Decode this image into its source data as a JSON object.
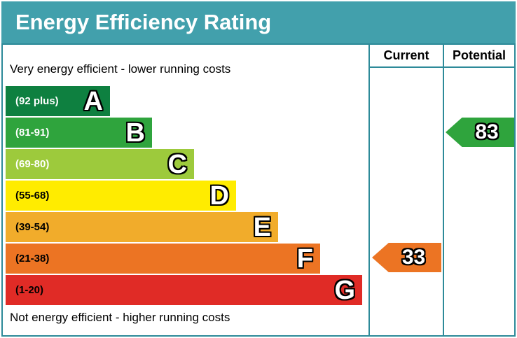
{
  "window": {
    "title": "Energy Efficiency Rating"
  },
  "table": {
    "current_header": "Current",
    "potential_header": "Potential"
  },
  "notes": {
    "top": "Very energy efficient - lower running costs",
    "bottom": "Not energy efficient - higher running costs"
  },
  "bands": [
    {
      "letter": "A",
      "range": "(92 plus)",
      "color": "#0e8040",
      "text_color": "#ffffff"
    },
    {
      "letter": "B",
      "range": "(81-91)",
      "color": "#2fa43d",
      "text_color": "#ffffff"
    },
    {
      "letter": "C",
      "range": "(69-80)",
      "color": "#9dca3c",
      "text_color": "#ffffff"
    },
    {
      "letter": "D",
      "range": "(55-68)",
      "color": "#ffec00",
      "text_color": "#000000"
    },
    {
      "letter": "E",
      "range": "(39-54)",
      "color": "#f1ac2b",
      "text_color": "#000000"
    },
    {
      "letter": "F",
      "range": "(21-38)",
      "color": "#ec7423",
      "text_color": "#000000"
    },
    {
      "letter": "G",
      "range": "(1-20)",
      "color": "#e02b26",
      "text_color": "#000000"
    }
  ],
  "markers": {
    "current": {
      "value": "33",
      "color": "#ec7423"
    },
    "potential": {
      "value": "83",
      "color": "#2fa43d"
    }
  },
  "theme": {
    "titlebar": "#42a0ac",
    "border": "#2d8a99",
    "header_text": "#000000"
  },
  "chart_data": {
    "type": "bar",
    "title": "Energy Efficiency Rating",
    "categories": [
      "A",
      "B",
      "C",
      "D",
      "E",
      "F",
      "G"
    ],
    "band_ranges": [
      "92 plus",
      "81-91",
      "69-80",
      "55-68",
      "39-54",
      "21-38",
      "1-20"
    ],
    "band_colors": [
      "#0e8040",
      "#2fa43d",
      "#9dca3c",
      "#ffec00",
      "#f1ac2b",
      "#ec7423",
      "#e02b26"
    ],
    "bar_relative_widths": [
      149,
      209,
      269,
      329,
      389,
      449,
      509
    ],
    "current_rating": 33,
    "current_band": "F",
    "potential_rating": 83,
    "potential_band": "B",
    "column_headers": [
      "Current",
      "Potential"
    ],
    "annotations": [
      "Very energy efficient - lower running costs",
      "Not energy efficient - higher running costs"
    ],
    "value_scale": [
      1,
      100
    ],
    "legend_position": "none",
    "grid": false
  }
}
